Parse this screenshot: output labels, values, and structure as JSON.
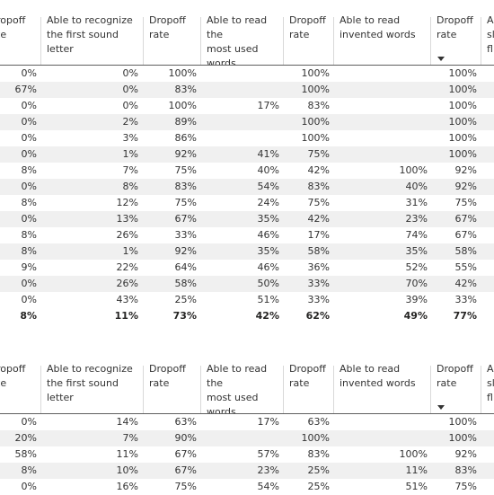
{
  "table1": {
    "headers": [
      {
        "label": "ropoff\nte",
        "line1": "ropoff",
        "line2": "te",
        "line3": ""
      },
      {
        "line1": "Able to recognize",
        "line2": "the first sound letter",
        "line3": ""
      },
      {
        "line1": "Dropoff",
        "line2": "rate",
        "line3": ""
      },
      {
        "line1": "Able to read the",
        "line2": "most used",
        "line3": "words"
      },
      {
        "line1": "Dropoff",
        "line2": "rate",
        "line3": ""
      },
      {
        "line1": "Able to read",
        "line2": "invented words",
        "line3": ""
      },
      {
        "line1": "Dropoff",
        "line2": "rate",
        "line3": ""
      },
      {
        "line1": "A",
        "line2": "sl",
        "line3": "fl"
      }
    ],
    "rows": [
      [
        "0%",
        "0%",
        "100%",
        "",
        "100%",
        "",
        "100%"
      ],
      [
        "67%",
        "0%",
        "83%",
        "",
        "100%",
        "",
        "100%"
      ],
      [
        "0%",
        "0%",
        "100%",
        "17%",
        "83%",
        "",
        "100%"
      ],
      [
        "0%",
        "2%",
        "89%",
        "",
        "100%",
        "",
        "100%"
      ],
      [
        "0%",
        "3%",
        "86%",
        "",
        "100%",
        "",
        "100%"
      ],
      [
        "0%",
        "1%",
        "92%",
        "41%",
        "75%",
        "",
        "100%"
      ],
      [
        "8%",
        "7%",
        "75%",
        "40%",
        "42%",
        "100%",
        "92%"
      ],
      [
        "0%",
        "8%",
        "83%",
        "54%",
        "83%",
        "40%",
        "92%"
      ],
      [
        "8%",
        "12%",
        "75%",
        "24%",
        "75%",
        "31%",
        "75%"
      ],
      [
        "0%",
        "13%",
        "67%",
        "35%",
        "42%",
        "23%",
        "67%"
      ],
      [
        "8%",
        "26%",
        "33%",
        "46%",
        "17%",
        "74%",
        "67%"
      ],
      [
        "8%",
        "1%",
        "92%",
        "35%",
        "58%",
        "35%",
        "58%"
      ],
      [
        "9%",
        "22%",
        "64%",
        "46%",
        "36%",
        "52%",
        "55%"
      ],
      [
        "0%",
        "26%",
        "58%",
        "50%",
        "33%",
        "70%",
        "42%"
      ],
      [
        "0%",
        "43%",
        "25%",
        "51%",
        "33%",
        "39%",
        "33%"
      ]
    ],
    "total": [
      "8%",
      "11%",
      "73%",
      "42%",
      "62%",
      "49%",
      "77%"
    ]
  },
  "table2": {
    "headers": [
      {
        "line1": "ropoff",
        "line2": "te",
        "line3": ""
      },
      {
        "line1": "Able to recognize",
        "line2": "the first sound letter",
        "line3": ""
      },
      {
        "line1": "Dropoff",
        "line2": "rate",
        "line3": ""
      },
      {
        "line1": "Able to read the",
        "line2": "most used",
        "line3": "words"
      },
      {
        "line1": "Dropoff",
        "line2": "rate",
        "line3": ""
      },
      {
        "line1": "Able to read",
        "line2": "invented words",
        "line3": ""
      },
      {
        "line1": "Dropoff",
        "line2": "rate",
        "line3": ""
      },
      {
        "line1": "A",
        "line2": "sl",
        "line3": "fl"
      }
    ],
    "rows": [
      [
        "0%",
        "14%",
        "63%",
        "17%",
        "63%",
        "",
        "100%"
      ],
      [
        "20%",
        "7%",
        "90%",
        "",
        "100%",
        "",
        "100%"
      ],
      [
        "58%",
        "11%",
        "67%",
        "57%",
        "83%",
        "100%",
        "92%"
      ],
      [
        "8%",
        "10%",
        "67%",
        "23%",
        "25%",
        "11%",
        "83%"
      ],
      [
        "0%",
        "16%",
        "75%",
        "54%",
        "25%",
        "51%",
        "75%"
      ]
    ]
  }
}
